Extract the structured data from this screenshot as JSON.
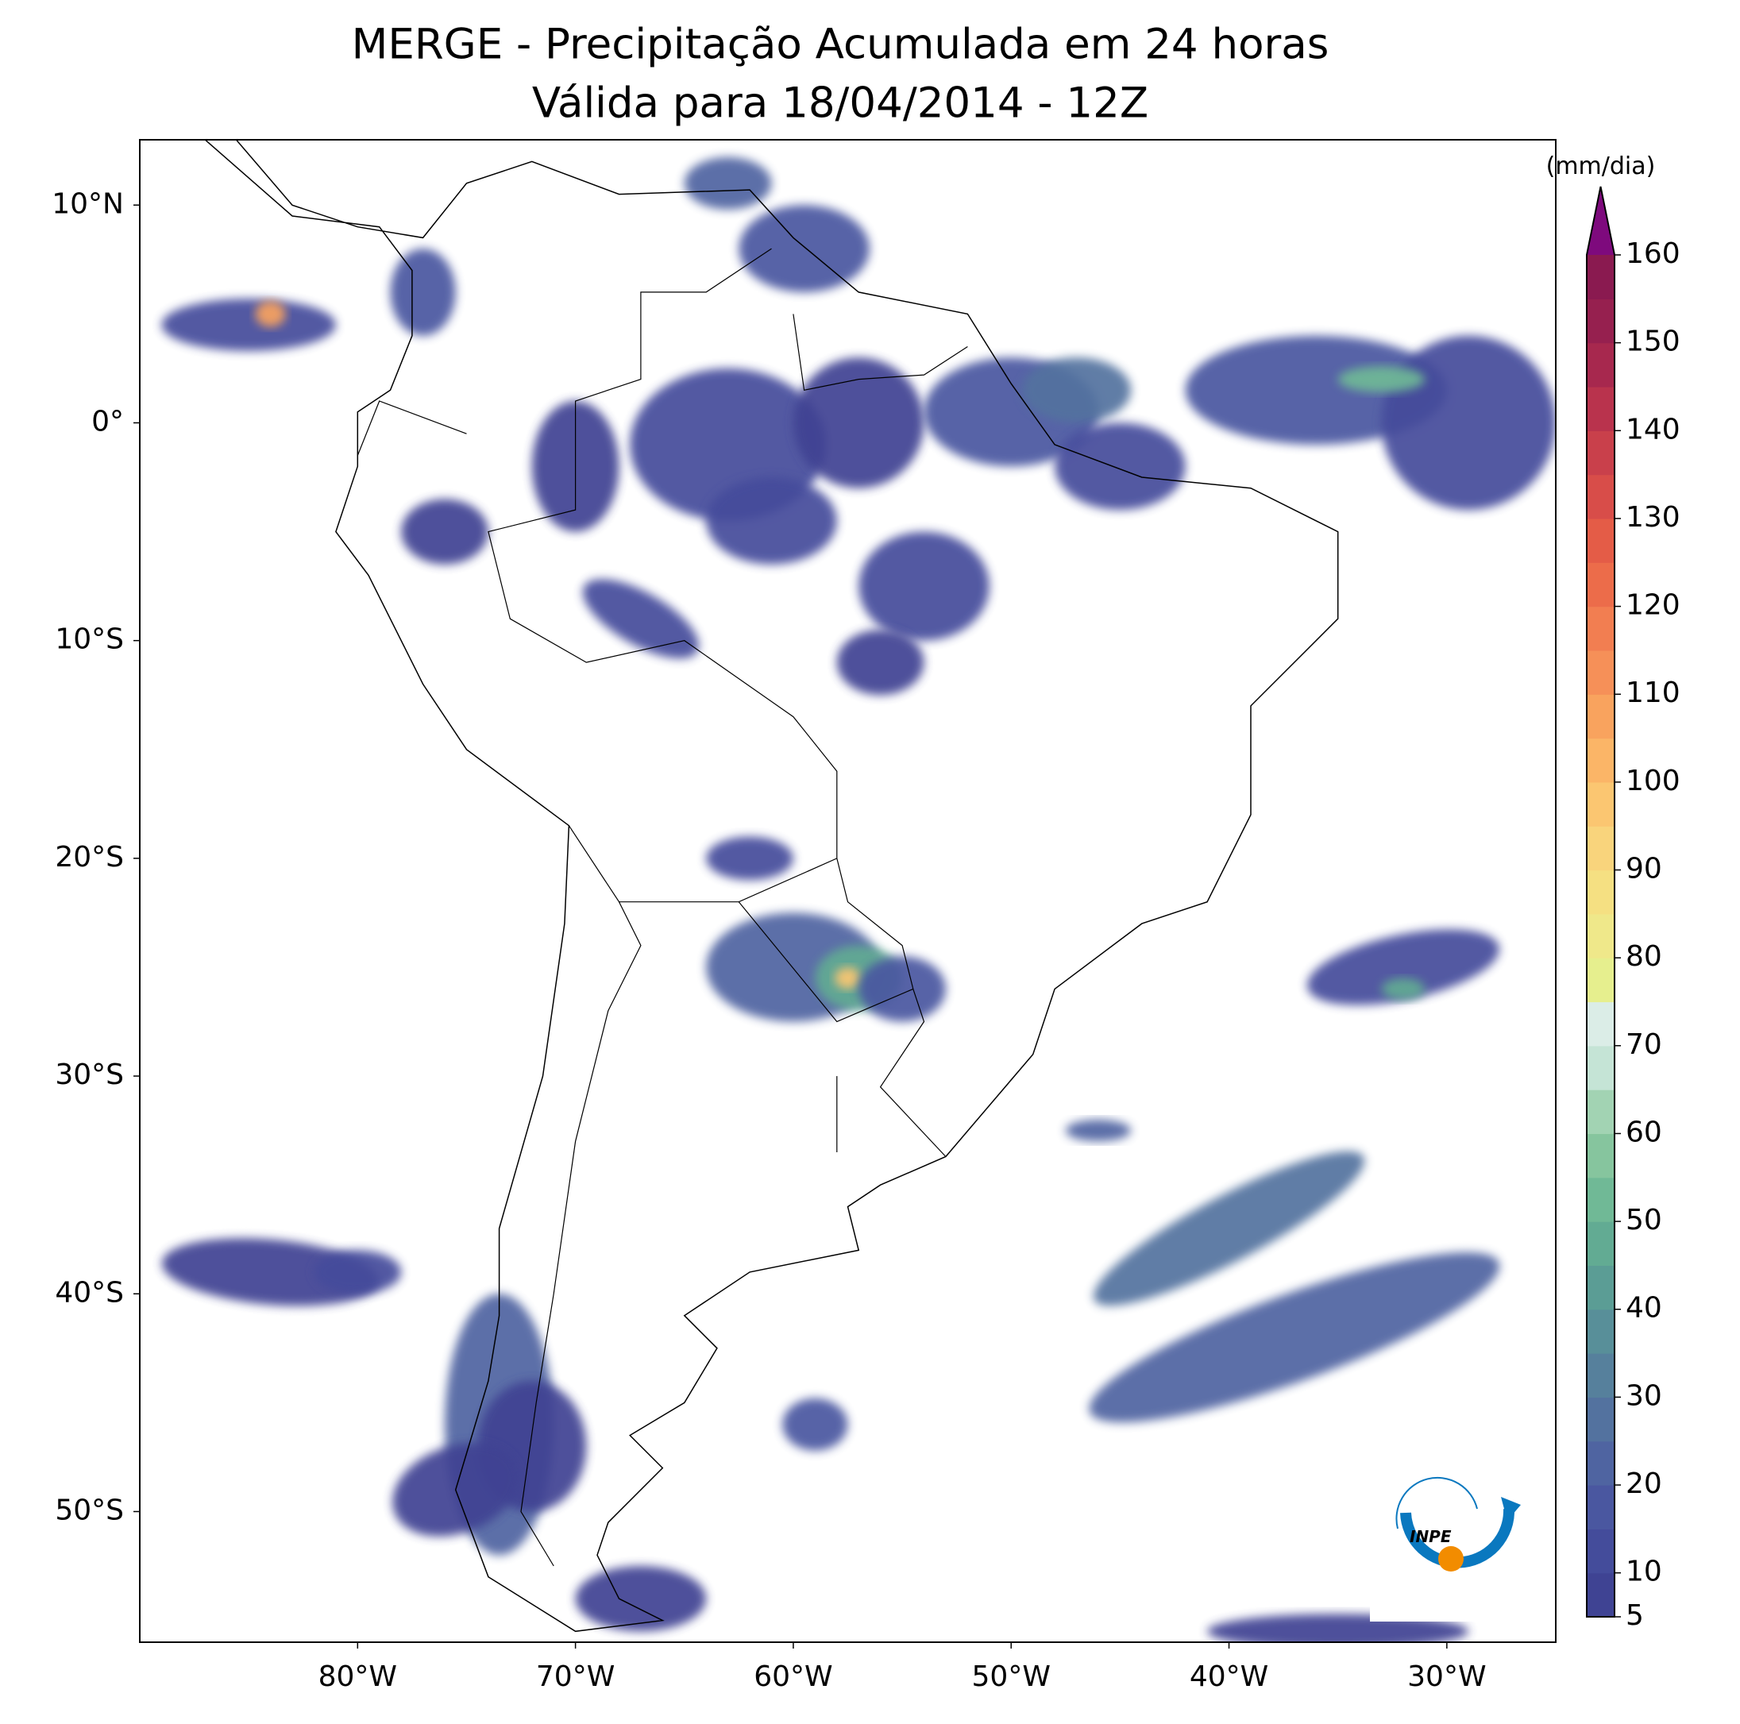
{
  "chart_data": {
    "type": "map",
    "title": [
      "MERGE - Precipitação Acumulada em 24 horas",
      "Válida para 18/04/2014 - 12Z"
    ],
    "xlim": [
      -90,
      -25
    ],
    "ylim": [
      -56,
      13
    ],
    "xticks": [
      {
        "value": -80,
        "label": "80°W"
      },
      {
        "value": -70,
        "label": "70°W"
      },
      {
        "value": -60,
        "label": "60°W"
      },
      {
        "value": -50,
        "label": "50°W"
      },
      {
        "value": -40,
        "label": "40°W"
      },
      {
        "value": -30,
        "label": "30°W"
      }
    ],
    "yticks": [
      {
        "value": 10,
        "label": "10°N"
      },
      {
        "value": 0,
        "label": "0°"
      },
      {
        "value": -10,
        "label": "10°S"
      },
      {
        "value": -20,
        "label": "20°S"
      },
      {
        "value": -30,
        "label": "30°S"
      },
      {
        "value": -40,
        "label": "40°S"
      },
      {
        "value": -50,
        "label": "50°S"
      }
    ],
    "colorbar": {
      "label": "(mm/dia)",
      "lim": [
        5,
        160
      ],
      "ticks": [
        5,
        10,
        20,
        30,
        40,
        50,
        60,
        70,
        80,
        90,
        100,
        110,
        120,
        130,
        140,
        150,
        160
      ],
      "colors": [
        "#3f4393",
        "#444c9b",
        "#4a57a0",
        "#4f64a1",
        "#53729f",
        "#56809c",
        "#588f99",
        "#5b9d95",
        "#62ab93",
        "#70b996",
        "#86c59e",
        "#a2d3b3",
        "#c5e4d6",
        "#dbede7",
        "#e6ef8e",
        "#efe88a",
        "#f5e082",
        "#f9d47c",
        "#fbc671",
        "#fbb567",
        "#f9a35e",
        "#f69058",
        "#f27e51",
        "#ec6c4a",
        "#e45c47",
        "#d84d49",
        "#c9404b",
        "#b9334d",
        "#a7284e",
        "#96204f",
        "#8a1a50"
      ],
      "extend_color": "#7e0a7d"
    },
    "logo_text": "INPE"
  }
}
